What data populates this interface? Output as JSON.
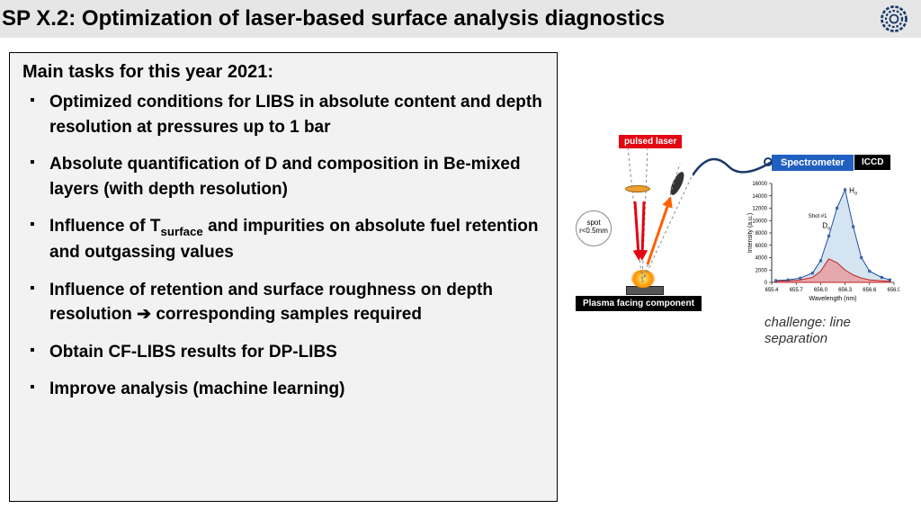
{
  "header": {
    "title": "SP X.2: Optimization of laser-based surface analysis diagnostics"
  },
  "main": {
    "heading": "Main tasks for this year 2021:",
    "tasks": [
      "Optimized conditions for LIBS in absolute content and depth resolution at pressures up to 1 bar",
      "Absolute quantification of D and composition in Be-mixed layers (with depth resolution)",
      "Influence of T<sub>surface</sub> and impurities on absolute fuel retention and outgassing values",
      "Influence of retention and surface roughness on depth resolution <span class='arrow'>➔</span> corresponding samples required",
      "Obtain CF-LIBS results for DP-LIBS",
      "Improve analysis (machine learning)"
    ]
  },
  "diagram": {
    "pulsed_laser_label": "pulsed laser",
    "spectrometer_label": "Spectrometer",
    "iccd_label": "ICCD",
    "pfc_label": "Plasma facing component",
    "spot_label": "spot\nr<0.5mm",
    "challenge_text": "challenge: line separation",
    "spectrum": {
      "type": "line",
      "xlabel": "Wavelength (nm)",
      "ylabel": "Intensity (a.u.)",
      "xlim": [
        655.4,
        656.9
      ],
      "ylim": [
        0,
        16000
      ],
      "ytick_step": 2000,
      "xtick_step": 0.3,
      "peaks": [
        {
          "label": "Hα",
          "x": 656.3,
          "color_fill": "#b8d4e8",
          "color_line": "#2050a0"
        },
        {
          "label": "Dα",
          "x": 656.1,
          "color_fill": "#f08080",
          "color_line": "#c02020"
        }
      ],
      "annotation": "Shot #1",
      "shot1_curve": [
        [
          655.45,
          300
        ],
        [
          655.6,
          400
        ],
        [
          655.75,
          700
        ],
        [
          655.9,
          1500
        ],
        [
          656.0,
          3500
        ],
        [
          656.1,
          7500
        ],
        [
          656.2,
          12000
        ],
        [
          656.3,
          15000
        ],
        [
          656.4,
          9000
        ],
        [
          656.5,
          4000
        ],
        [
          656.6,
          1800
        ],
        [
          656.75,
          800
        ],
        [
          656.85,
          400
        ]
      ],
      "shot2_curve": [
        [
          655.45,
          200
        ],
        [
          655.6,
          250
        ],
        [
          655.75,
          400
        ],
        [
          655.9,
          800
        ],
        [
          656.0,
          1800
        ],
        [
          656.1,
          3800
        ],
        [
          656.2,
          3200
        ],
        [
          656.3,
          2000
        ],
        [
          656.4,
          1200
        ],
        [
          656.5,
          700
        ],
        [
          656.6,
          400
        ],
        [
          656.75,
          250
        ],
        [
          656.85,
          180
        ]
      ],
      "background_color": "#ffffff",
      "axis_color": "#000000",
      "label_fontsize": 7
    },
    "laser_rays": {
      "down_color": "#e30613",
      "up_color": "#ff6000",
      "dash_color": "#888888"
    }
  }
}
